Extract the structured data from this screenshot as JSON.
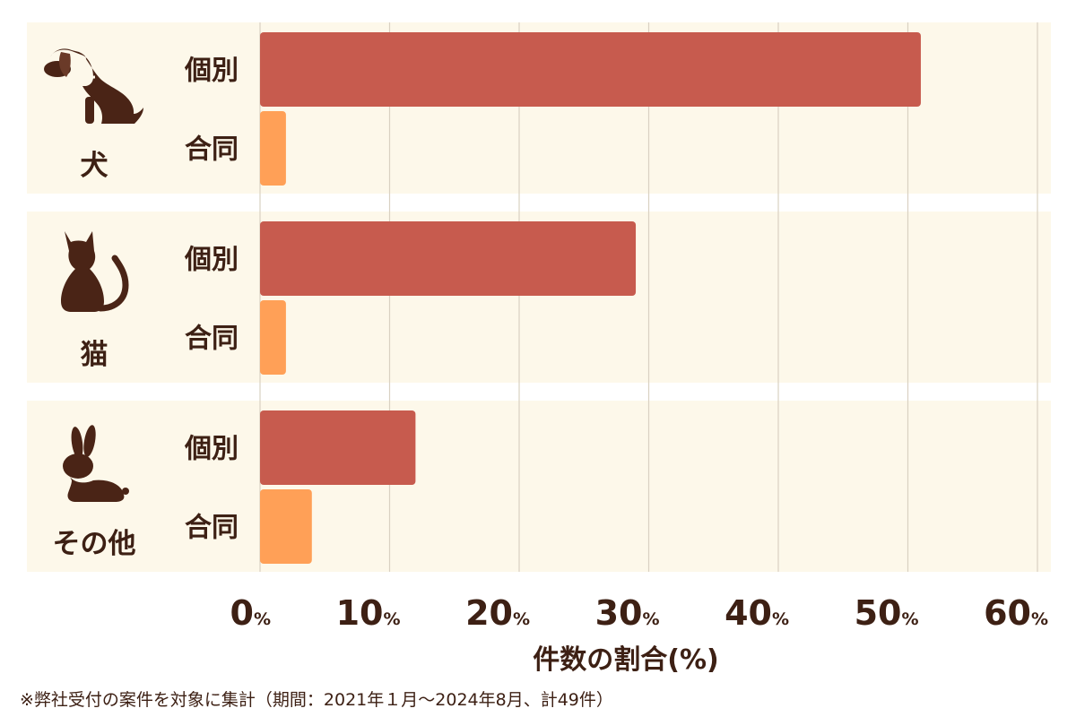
{
  "colors": {
    "panel_bg": "#fdf8ea",
    "individual": "#c75b4e",
    "joint": "#ffa057",
    "text": "#3d2014",
    "grid": "#d9d1c2",
    "icon": "#4a2416"
  },
  "chart_data": {
    "type": "bar",
    "orientation": "horizontal",
    "groups": [
      {
        "label": "犬",
        "icon": "dog-icon"
      },
      {
        "label": "猫",
        "icon": "cat-icon"
      },
      {
        "label": "その他",
        "icon": "rabbit-icon"
      }
    ],
    "series": [
      {
        "name": "個別",
        "values": [
          51,
          29,
          12
        ],
        "color": "#c75b4e"
      },
      {
        "name": "合同",
        "values": [
          2,
          2,
          4
        ],
        "color": "#ffa057"
      }
    ],
    "xlim": [
      0,
      60
    ],
    "xticks": [
      0,
      10,
      20,
      30,
      40,
      50,
      60
    ],
    "tick_suffix": "%",
    "xlabel": "件数の割合(%)",
    "grid": true
  },
  "footnote": "※弊社受付の案件を対象に集計（期間：2021年１月～2024年8月、計49件）"
}
